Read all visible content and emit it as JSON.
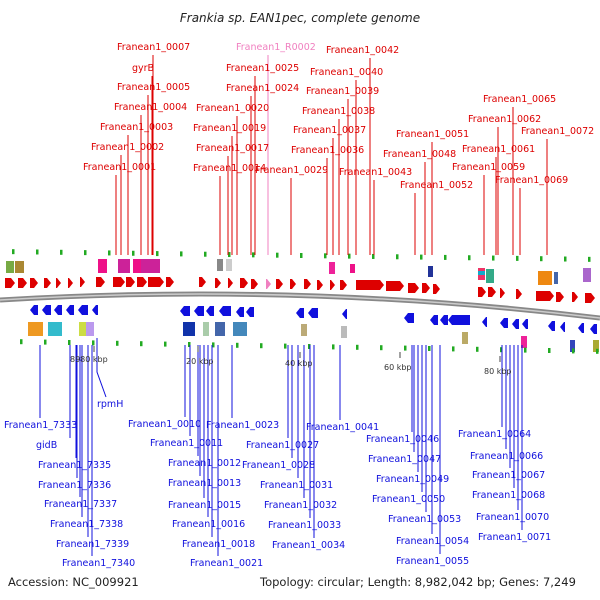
{
  "title": "Frankia sp. EAN1pec, complete genome",
  "footer": {
    "accession": "Accession: NC_009921",
    "topology": "Topology: circular; Length: 8,982,042 bp; Genes: 7,249"
  },
  "colors": {
    "forward": "#dd0000",
    "reverse": "#1010dd",
    "rna": "#f080c0",
    "backbone": "#888888",
    "marker": "#22aa22"
  },
  "scale_ticks": [
    "8980 kbp",
    "20 kbp",
    "40 kbp",
    "60 kbp",
    "80 kbp"
  ],
  "forward_labels": [
    "Franean1_0007",
    "gyrB",
    "Franean1_0005",
    "Franean1_0004",
    "Franean1_0003",
    "Franean1_0002",
    "Franean1_0001",
    "Franean1_R0002",
    "Franean1_0025",
    "Franean1_0024",
    "Franean1_0020",
    "Franean1_0019",
    "Franean1_0017",
    "Franean1_0014",
    "Franean1_0042",
    "Franean1_0040",
    "Franean1_0039",
    "Franean1_0038",
    "Franean1_0037",
    "Franean1_0036",
    "Franean1_0029",
    "Franean1_0043",
    "Franean1_0051",
    "Franean1_0048",
    "Franean1_0052",
    "Franean1_0065",
    "Franean1_0062",
    "Franean1_0072",
    "Franean1_0061",
    "Franean1_0059",
    "Franean1_0069"
  ],
  "reverse_labels": [
    "Franean1_7333",
    "gidB",
    "rpmH",
    "Franean1_7335",
    "Franean1_7336",
    "Franean1_7337",
    "Franean1_7338",
    "Franean1_7339",
    "Franean1_7340",
    "Franean1_0010",
    "Franean1_0011",
    "Franean1_0012",
    "Franean1_0013",
    "Franean1_0015",
    "Franean1_0016",
    "Franean1_0018",
    "Franean1_0021",
    "Franean1_0023",
    "Franean1_0027",
    "Franean1_0028",
    "Franean1_0031",
    "Franean1_0032",
    "Franean1_0033",
    "Franean1_0034",
    "Franean1_0041",
    "Franean1_0046",
    "Franean1_0047",
    "Franean1_0049",
    "Franean1_0050",
    "Franean1_0053",
    "Franean1_0054",
    "Franean1_0055",
    "Franean1_0064",
    "Franean1_0066",
    "Franean1_0067",
    "Franean1_0068",
    "Franean1_0070",
    "Franean1_0071"
  ]
}
